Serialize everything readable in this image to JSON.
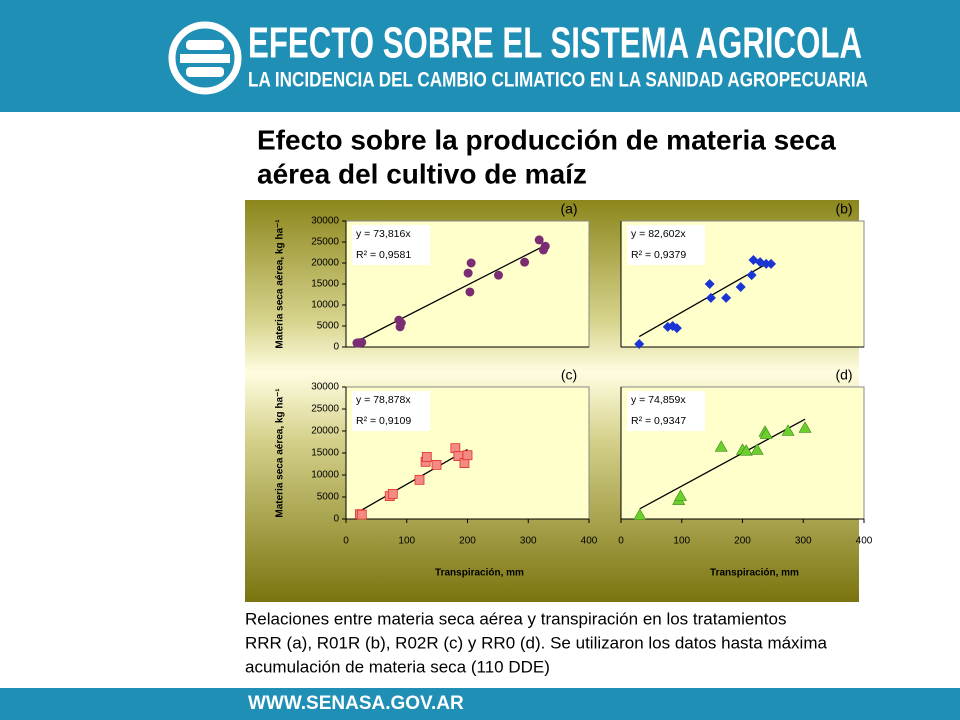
{
  "header": {
    "title": "EFECTO SOBRE EL SISTEMA AGRICOLA",
    "subtitle": "LA INCIDENCIA DEL CAMBIO CLIMATICO EN LA SANIDAD AGROPECUARIA"
  },
  "slide_title": [
    "Efecto sobre la producción de materia seca",
    "aérea del  cultivo de maíz"
  ],
  "chart_data": [
    {
      "type": "scatter",
      "panel": "(a)",
      "marker": "circle",
      "color": "#7b2d73",
      "x": [
        18,
        22,
        26,
        87,
        89,
        91,
        201,
        204,
        206,
        251,
        294,
        318,
        325,
        328
      ],
      "values": [
        950,
        1000,
        1100,
        6400,
        4800,
        5700,
        17600,
        13100,
        20000,
        17100,
        20200,
        25500,
        23100,
        24000
      ],
      "trend": {
        "label": "y = 73,816x",
        "slope": 73.816
      },
      "r2": "R² = 0,9581",
      "y_label": "Materia seca aérea, kg ha⁻¹",
      "xlim": [
        0,
        400
      ],
      "ylim": [
        0,
        30000
      ],
      "yticks": [
        0,
        5000,
        10000,
        15000,
        20000,
        25000,
        30000
      ]
    },
    {
      "type": "scatter",
      "panel": "(b)",
      "marker": "diamond",
      "color": "#1a35d4",
      "x": [
        30,
        77,
        85,
        92,
        146,
        148,
        173,
        197,
        215,
        218,
        229,
        239,
        247
      ],
      "values": [
        700,
        4800,
        5000,
        4500,
        15000,
        11700,
        11700,
        14300,
        17100,
        20700,
        20200,
        19800,
        19800
      ],
      "trend": {
        "label": "y = 82,602x",
        "slope": 82.602
      },
      "r2": "R² = 0,9379",
      "xlim": [
        0,
        400
      ],
      "ylim": [
        0,
        30000
      ]
    },
    {
      "type": "scatter",
      "panel": "(c)",
      "marker": "square",
      "color": "#f48a84",
      "x": [
        23,
        26,
        72,
        77,
        121,
        131,
        133,
        149,
        180,
        185,
        195,
        200
      ],
      "values": [
        1100,
        1000,
        5200,
        5700,
        8900,
        13000,
        14100,
        12300,
        16100,
        14300,
        12700,
        14500
      ],
      "trend": {
        "label": "y = 78,878x",
        "slope": 78.878
      },
      "r2": "R² = 0,9109",
      "y_label": "Materia seca aérea, kg ha⁻¹",
      "x_label": "Transpiración, mm",
      "xlim": [
        0,
        400
      ],
      "ylim": [
        0,
        30000
      ],
      "xticks": [
        0,
        100,
        200,
        300,
        400
      ],
      "yticks": [
        0,
        5000,
        10000,
        15000,
        20000,
        25000,
        30000
      ]
    },
    {
      "type": "scatter",
      "panel": "(d)",
      "marker": "triangle",
      "color": "#6ccf2e",
      "x": [
        31,
        95,
        98,
        165,
        200,
        206,
        224,
        237,
        239,
        275,
        303
      ],
      "values": [
        900,
        4300,
        5200,
        16400,
        15700,
        15500,
        15700,
        19800,
        19300,
        20000,
        20700
      ],
      "trend": {
        "label": "y = 74,859x",
        "slope": 74.859
      },
      "r2": "R² = 0,9347",
      "x_label": "Transpiración, mm",
      "xlim": [
        0,
        400
      ],
      "ylim": [
        0,
        30000
      ],
      "xticks": [
        0,
        100,
        200,
        300,
        400
      ]
    }
  ],
  "caption": [
    "Relaciones entre materia seca aérea y transpiración en los tratamientos",
    "RRR (a), R01R (b), R02R (c) y RR0 (d). Se utilizaron los datos hasta máxima",
    "acumulación de materia seca (110 DDE)"
  ],
  "footer": "WWW.SENASA.GOV.AR"
}
